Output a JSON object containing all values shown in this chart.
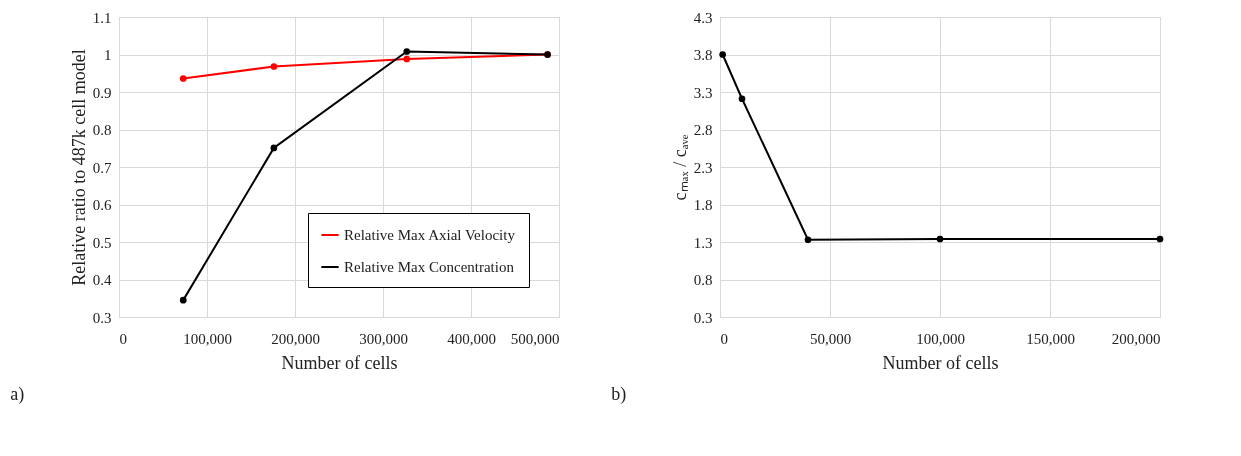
{
  "chart_data": [
    {
      "type": "line",
      "xlabel": "Number of cells",
      "ylabel": "Relative ratio to 487k cell model",
      "annotations": [
        "a)"
      ],
      "x": [
        73000,
        176000,
        327000,
        487000
      ],
      "series": [
        {
          "name": "Relative Max Axial Velocity",
          "color": "#ff0000",
          "values": [
            0.936,
            0.968,
            0.988,
            1.0
          ]
        },
        {
          "name": "Relative Max Concentration",
          "color": "#000000",
          "values": [
            0.345,
            0.751,
            1.008,
            1.0
          ]
        }
      ],
      "xlim": [
        0,
        500000
      ],
      "xticks": [
        {
          "value": 0,
          "label": "0"
        },
        {
          "value": 100000,
          "label": "100,000"
        },
        {
          "value": 200000,
          "label": "200,000"
        },
        {
          "value": 300000,
          "label": "300,000"
        },
        {
          "value": 400000,
          "label": "400,000"
        },
        {
          "value": 500000,
          "label": "500,000"
        }
      ],
      "ylim": [
        0.3,
        1.1
      ],
      "yticks": [
        0.3,
        0.4,
        0.5,
        0.6,
        0.7,
        0.8,
        0.9,
        1,
        1.1
      ],
      "grid": true,
      "legend": "bottom right",
      "marker": "circle",
      "line_style": "solid"
    },
    {
      "type": "line",
      "xlabel": "Number of cells",
      "ylabel": "cₘₐₓ / cₐᵥₑ",
      "annotations": [
        "b)"
      ],
      "x": [
        1200,
        10000,
        40000,
        100000,
        200000
      ],
      "series": [
        {
          "color": "#000000",
          "values": [
            3.8,
            3.21,
            1.33,
            1.34,
            1.34
          ]
        }
      ],
      "xlim": [
        0,
        200000
      ],
      "xticks": [
        {
          "value": 0,
          "label": "0"
        },
        {
          "value": 50000,
          "label": "50,000"
        },
        {
          "value": 100000,
          "label": "100,000"
        },
        {
          "value": 150000,
          "label": "150,000"
        },
        {
          "value": 200000,
          "label": "200,000"
        }
      ],
      "ylim": [
        0.3,
        4.3
      ],
      "yticks": [
        0.3,
        0.8,
        1.3,
        1.8,
        2.3,
        2.8,
        3.3,
        3.8,
        4.3
      ],
      "grid": true,
      "marker": "circle",
      "line_style": "solid"
    }
  ]
}
